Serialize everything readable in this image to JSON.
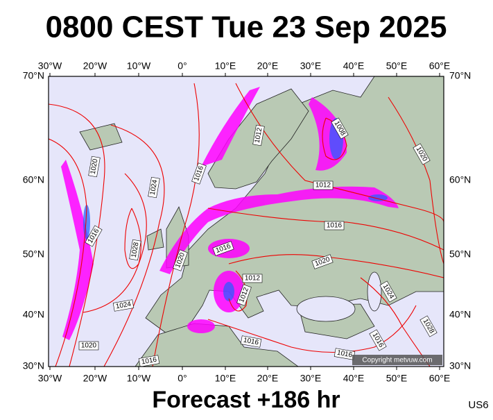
{
  "title": "0800 CEST Tue 23 Sep 2025",
  "footer": "Forecast +186 hr",
  "code": "US6",
  "copyright": "Copyright metvuw.com",
  "lon_labels": [
    "30°W",
    "20°W",
    "10°W",
    "0°",
    "10°E",
    "20°E",
    "30°E",
    "40°E",
    "50°E",
    "60°E"
  ],
  "lat_labels": [
    "70°N",
    "60°N",
    "50°N",
    "40°N",
    "30°N"
  ],
  "isobar_labels": [
    "1020",
    "1024",
    "1016",
    "1028",
    "1020",
    "1024",
    "1020",
    "1016",
    "1016",
    "1012",
    "1008",
    "1020",
    "1012",
    "1016",
    "1016",
    "1020",
    "1012",
    "1012",
    "1016",
    "1024",
    "1016",
    "1028",
    "1016"
  ]
}
